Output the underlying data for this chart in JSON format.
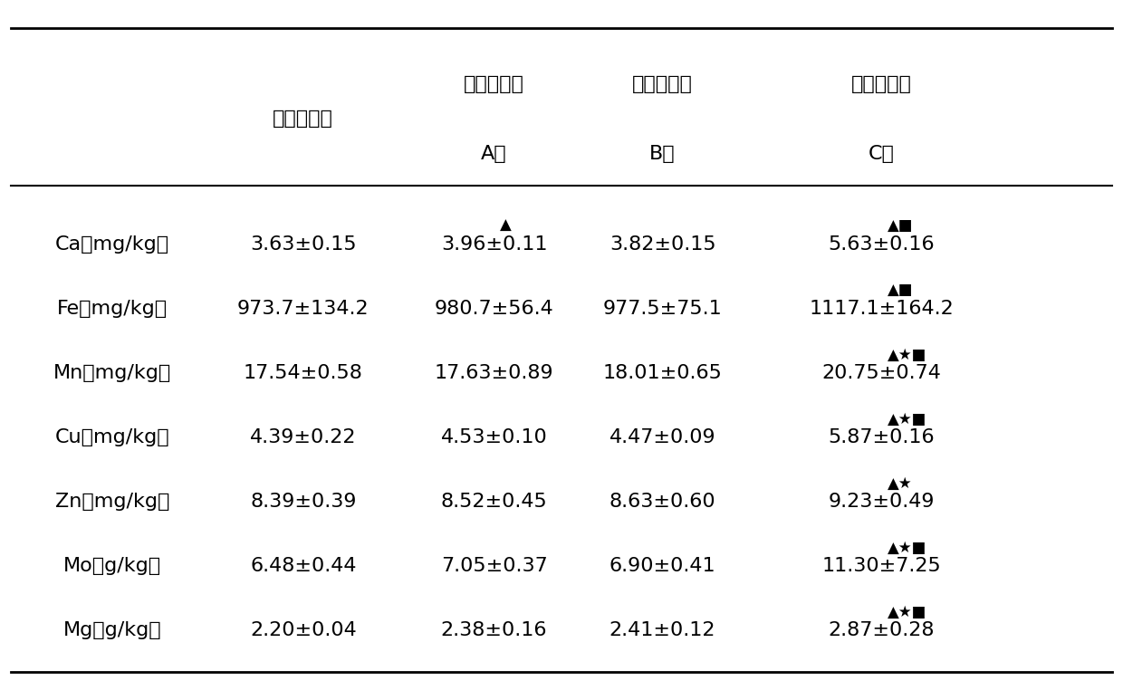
{
  "col_headers": [
    [
      "",
      "空白对照组",
      "复合乳酸菌\nA组",
      "复合乳酸菌\nB组",
      "复合乳酸菌\nC组"
    ],
    [
      "",
      "",
      "A组",
      "B组",
      "C组"
    ]
  ],
  "header_line1": [
    "",
    "空白对照组",
    "复合乳酸菌",
    "复合乳酸菌",
    "复合乳酸菌"
  ],
  "header_line2": [
    "",
    "",
    "A组",
    "B组",
    "C组"
  ],
  "rows": [
    [
      "Ca（mg/kg）",
      "3.63±0.15",
      "3.96±0.11",
      "3.82±0.15",
      "5.63±0.16"
    ],
    [
      "Fe（mg/kg）",
      "973.7±134.2",
      "980.7±56.4",
      "977.5±75.1",
      "1117.1±164.2"
    ],
    [
      "Mn（mg/kg）",
      "17.54±0.58",
      "17.63±0.89",
      "18.01±0.65",
      "20.75±0.74"
    ],
    [
      "Cu（mg/kg）",
      "4.39±0.22",
      "4.53±0.10",
      "4.47±0.09",
      "5.87±0.16"
    ],
    [
      "Zn（mg/kg）",
      "8.39±0.39",
      "8.52±0.45",
      "8.63±0.60",
      "9.23±0.49"
    ],
    [
      "Mo（g/kg）",
      "6.48±0.44",
      "7.05±0.37",
      "6.90±0.41",
      "11.30±7.25"
    ],
    [
      "Mg（g/kg）",
      "2.20±0.04",
      "2.38±0.16",
      "2.41±0.12",
      "2.87±0.28"
    ]
  ],
  "superscripts": [
    [
      "",
      "",
      "▲",
      "",
      "▲■"
    ],
    [
      "",
      "",
      "",
      "",
      "▲■"
    ],
    [
      "",
      "",
      "",
      "",
      "▲★■"
    ],
    [
      "",
      "",
      "",
      "",
      "▲★■"
    ],
    [
      "",
      "",
      "",
      "",
      "▲★"
    ],
    [
      "",
      "",
      "",
      "",
      "▲★■"
    ],
    [
      "",
      "",
      "",
      "",
      "▲★■"
    ]
  ],
  "bg_color": "#ffffff",
  "text_color": "#000000",
  "header_fontsize": 16,
  "cell_fontsize": 16,
  "row_label_fontsize": 16
}
